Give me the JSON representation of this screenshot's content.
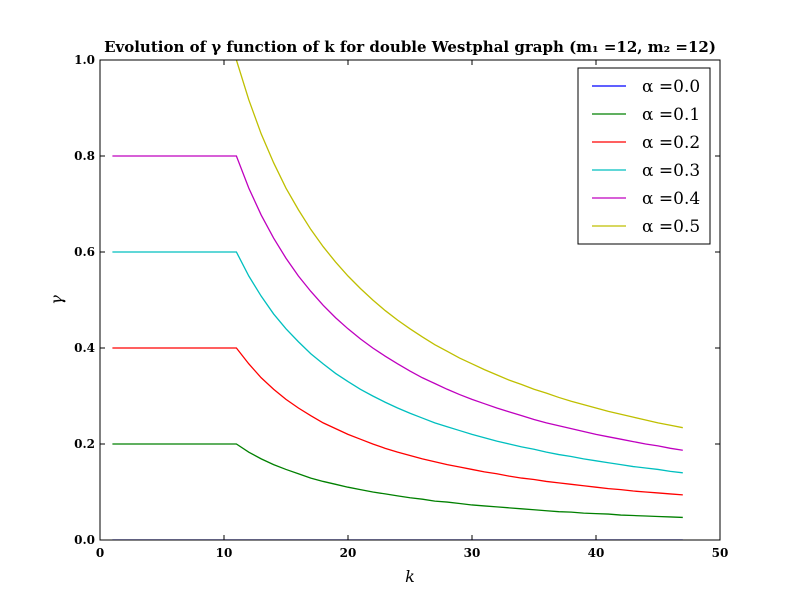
{
  "chart_data": {
    "type": "line",
    "title": "Evolution of γ function of k for double Westphal graph (m₁ =12, m₂ =12)",
    "xlabel": "k",
    "ylabel": "γ",
    "xlim": [
      0,
      50
    ],
    "ylim": [
      0.0,
      1.0
    ],
    "x_ticks": [
      "0",
      "10",
      "20",
      "30",
      "40",
      "50"
    ],
    "y_ticks": [
      "0.0",
      "0.2",
      "0.4",
      "0.6",
      "0.8",
      "1.0"
    ],
    "grid": false,
    "legend_position": "top-right",
    "x": [
      1,
      2,
      3,
      4,
      5,
      6,
      7,
      8,
      9,
      10,
      11,
      12,
      13,
      14,
      15,
      16,
      17,
      18,
      19,
      20,
      21,
      22,
      23,
      24,
      25,
      26,
      27,
      28,
      29,
      30,
      31,
      32,
      33,
      34,
      35,
      36,
      37,
      38,
      39,
      40,
      41,
      42,
      43,
      44,
      45,
      46,
      47
    ],
    "series": [
      {
        "name": "α =0.0",
        "color": "#0000ff",
        "values": [
          0,
          0,
          0,
          0,
          0,
          0,
          0,
          0,
          0,
          0,
          0,
          0,
          0,
          0,
          0,
          0,
          0,
          0,
          0,
          0,
          0,
          0,
          0,
          0,
          0,
          0,
          0,
          0,
          0,
          0,
          0,
          0,
          0,
          0,
          0,
          0,
          0,
          0,
          0,
          0,
          0,
          0,
          0,
          0,
          0,
          0,
          0
        ]
      },
      {
        "name": "α =0.1",
        "color": "#008000",
        "values": [
          0.2,
          0.2,
          0.2,
          0.2,
          0.2,
          0.2,
          0.2,
          0.2,
          0.2,
          0.2,
          0.2,
          0.183,
          0.169,
          0.157,
          0.147,
          0.138,
          0.129,
          0.122,
          0.116,
          0.11,
          0.105,
          0.1,
          0.096,
          0.092,
          0.088,
          0.085,
          0.081,
          0.079,
          0.076,
          0.073,
          0.071,
          0.069,
          0.067,
          0.065,
          0.063,
          0.061,
          0.059,
          0.058,
          0.056,
          0.055,
          0.054,
          0.052,
          0.051,
          0.05,
          0.049,
          0.048,
          0.047
        ]
      },
      {
        "name": "α =0.2",
        "color": "#ff0000",
        "values": [
          0.4,
          0.4,
          0.4,
          0.4,
          0.4,
          0.4,
          0.4,
          0.4,
          0.4,
          0.4,
          0.4,
          0.367,
          0.338,
          0.314,
          0.293,
          0.275,
          0.259,
          0.244,
          0.232,
          0.22,
          0.21,
          0.2,
          0.191,
          0.183,
          0.176,
          0.169,
          0.163,
          0.157,
          0.152,
          0.147,
          0.142,
          0.138,
          0.133,
          0.129,
          0.126,
          0.122,
          0.119,
          0.116,
          0.113,
          0.11,
          0.107,
          0.105,
          0.102,
          0.1,
          0.098,
          0.096,
          0.094
        ]
      },
      {
        "name": "α =0.3",
        "color": "#00bfbf",
        "values": [
          0.6,
          0.6,
          0.6,
          0.6,
          0.6,
          0.6,
          0.6,
          0.6,
          0.6,
          0.6,
          0.6,
          0.55,
          0.508,
          0.471,
          0.44,
          0.413,
          0.388,
          0.367,
          0.347,
          0.33,
          0.314,
          0.3,
          0.287,
          0.275,
          0.264,
          0.254,
          0.244,
          0.236,
          0.228,
          0.22,
          0.213,
          0.206,
          0.2,
          0.194,
          0.189,
          0.183,
          0.178,
          0.174,
          0.169,
          0.165,
          0.161,
          0.157,
          0.153,
          0.15,
          0.147,
          0.143,
          0.14
        ]
      },
      {
        "name": "α =0.4",
        "color": "#bf00bf",
        "values": [
          0.8,
          0.8,
          0.8,
          0.8,
          0.8,
          0.8,
          0.8,
          0.8,
          0.8,
          0.8,
          0.8,
          0.733,
          0.677,
          0.629,
          0.587,
          0.55,
          0.518,
          0.489,
          0.463,
          0.44,
          0.419,
          0.4,
          0.383,
          0.367,
          0.352,
          0.338,
          0.326,
          0.314,
          0.303,
          0.293,
          0.284,
          0.275,
          0.267,
          0.259,
          0.251,
          0.244,
          0.238,
          0.232,
          0.226,
          0.22,
          0.215,
          0.21,
          0.205,
          0.2,
          0.196,
          0.191,
          0.187
        ]
      },
      {
        "name": "α =0.5",
        "color": "#bfbf00",
        "values": [
          null,
          null,
          null,
          null,
          null,
          null,
          null,
          null,
          null,
          null,
          1.0,
          0.917,
          0.846,
          0.786,
          0.733,
          0.688,
          0.647,
          0.611,
          0.579,
          0.55,
          0.524,
          0.5,
          0.478,
          0.458,
          0.44,
          0.423,
          0.407,
          0.393,
          0.379,
          0.367,
          0.355,
          0.344,
          0.333,
          0.324,
          0.314,
          0.306,
          0.297,
          0.289,
          0.282,
          0.275,
          0.268,
          0.262,
          0.256,
          0.25,
          0.244,
          0.239,
          0.234
        ]
      }
    ]
  }
}
